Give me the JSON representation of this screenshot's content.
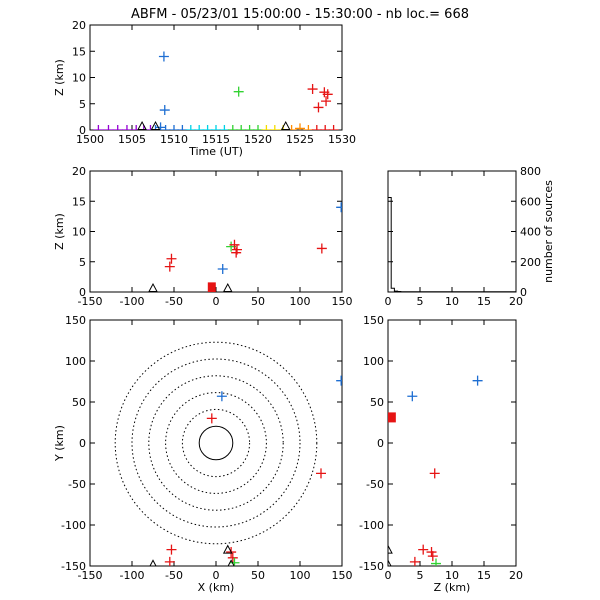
{
  "title_text": "ABFM - 05/23/01 15:00:00 - 15:30:00 - nb loc.=    668",
  "colors": {
    "early": "#9400d3",
    "blue": "#1e6ed2",
    "cyan": "#00d2e6",
    "green": "#32d232",
    "yellow": "#f5dc00",
    "orange": "#ff8c00",
    "red": "#e61414",
    "station": "#000000"
  },
  "chart_data": [
    {
      "id": "time_height",
      "type": "scatter",
      "title": "ABFM - 05/23/01 15:00:00 - 15:30:00 - nb loc.=    668",
      "xlabel": "Time (UT)",
      "ylabel": "Z (km)",
      "xlim": [
        1500,
        1530
      ],
      "ylim": [
        0,
        20
      ],
      "xticks": [
        1500,
        1505,
        1510,
        1515,
        1520,
        1525,
        1530
      ],
      "yticks": [
        0,
        5,
        10,
        15,
        20
      ],
      "sources": [
        {
          "x": 1501.0,
          "y": 0.0,
          "c": "early"
        },
        {
          "x": 1502.2,
          "y": 0.0,
          "c": "early"
        },
        {
          "x": 1503.3,
          "y": 0.0,
          "c": "early"
        },
        {
          "x": 1504.4,
          "y": 0.0,
          "c": "early"
        },
        {
          "x": 1505.5,
          "y": 0.0,
          "c": "early"
        },
        {
          "x": 1506.4,
          "y": 0.0,
          "c": "early"
        },
        {
          "x": 1507.2,
          "y": 0.0,
          "c": "early"
        },
        {
          "x": 1507.8,
          "y": 0.0,
          "c": "blue"
        },
        {
          "x": 1508.4,
          "y": 0.5,
          "c": "blue"
        },
        {
          "x": 1509.0,
          "y": 0.0,
          "c": "blue"
        },
        {
          "x": 1508.8,
          "y": 14.0,
          "c": "blue"
        },
        {
          "x": 1508.9,
          "y": 3.8,
          "c": "blue"
        },
        {
          "x": 1510.0,
          "y": 0.0,
          "c": "blue"
        },
        {
          "x": 1511.0,
          "y": 0.0,
          "c": "blue"
        },
        {
          "x": 1512.0,
          "y": 0.0,
          "c": "cyan"
        },
        {
          "x": 1513.0,
          "y": 0.0,
          "c": "cyan"
        },
        {
          "x": 1514.0,
          "y": 0.0,
          "c": "cyan"
        },
        {
          "x": 1515.0,
          "y": 0.0,
          "c": "cyan"
        },
        {
          "x": 1516.0,
          "y": 0.0,
          "c": "cyan"
        },
        {
          "x": 1517.0,
          "y": 0.0,
          "c": "green"
        },
        {
          "x": 1518.0,
          "y": 0.0,
          "c": "green"
        },
        {
          "x": 1519.0,
          "y": 0.0,
          "c": "green"
        },
        {
          "x": 1520.0,
          "y": 0.0,
          "c": "green"
        },
        {
          "x": 1517.7,
          "y": 7.3,
          "c": "green"
        },
        {
          "x": 1521.0,
          "y": 0.0,
          "c": "yellow"
        },
        {
          "x": 1522.0,
          "y": 0.0,
          "c": "yellow"
        },
        {
          "x": 1523.0,
          "y": 0.0,
          "c": "yellow"
        },
        {
          "x": 1524.0,
          "y": 0.0,
          "c": "orange"
        },
        {
          "x": 1525.0,
          "y": 0.3,
          "c": "orange"
        },
        {
          "x": 1526.0,
          "y": 0.0,
          "c": "orange"
        },
        {
          "x": 1526.5,
          "y": 7.8,
          "c": "red"
        },
        {
          "x": 1527.2,
          "y": 4.3,
          "c": "red"
        },
        {
          "x": 1527.9,
          "y": 7.2,
          "c": "red"
        },
        {
          "x": 1528.1,
          "y": 5.5,
          "c": "red"
        },
        {
          "x": 1528.3,
          "y": 6.8,
          "c": "red"
        },
        {
          "x": 1527.0,
          "y": 0.0,
          "c": "red"
        },
        {
          "x": 1528.0,
          "y": 0.0,
          "c": "red"
        },
        {
          "x": 1529.0,
          "y": 0.0,
          "c": "red"
        }
      ],
      "stations": [
        {
          "x": 1506.2
        },
        {
          "x": 1507.8
        },
        {
          "x": 1523.3
        }
      ]
    },
    {
      "id": "x_height",
      "type": "scatter",
      "xlabel": "",
      "ylabel": "Z (km)",
      "xlim": [
        -150,
        150
      ],
      "ylim": [
        0,
        20
      ],
      "xticks": [
        -150,
        -100,
        -50,
        0,
        50,
        100,
        150
      ],
      "yticks": [
        0,
        5,
        10,
        15,
        20
      ],
      "sources": [
        {
          "x": -53,
          "y": 5.5,
          "c": "red"
        },
        {
          "x": -55,
          "y": 4.2,
          "c": "red"
        },
        {
          "x": 18,
          "y": 7.5,
          "c": "green"
        },
        {
          "x": 22,
          "y": 7.8,
          "c": "red"
        },
        {
          "x": 25,
          "y": 7.0,
          "c": "red"
        },
        {
          "x": 24,
          "y": 6.5,
          "c": "red"
        },
        {
          "x": 8,
          "y": 3.8,
          "c": "blue"
        },
        {
          "x": 126,
          "y": 7.2,
          "c": "red"
        },
        {
          "x": 149,
          "y": 14.0,
          "c": "blue"
        }
      ],
      "stations": [
        {
          "x": -75
        },
        {
          "x": 14
        }
      ],
      "box": {
        "x": -5,
        "y": 0.6,
        "c": "red"
      }
    },
    {
      "id": "height_histogram",
      "type": "area",
      "xlabel": "",
      "ylabel": "number of sources",
      "xlim": [
        0,
        20
      ],
      "ylim": [
        0,
        800
      ],
      "xticks": [
        0,
        5,
        10,
        15,
        20
      ],
      "yticks": [
        0,
        200,
        400,
        600,
        800
      ],
      "bins": [
        0,
        0.5,
        1,
        1.5,
        2,
        20
      ],
      "counts": [
        625,
        25,
        6,
        3,
        2
      ]
    },
    {
      "id": "plan_view",
      "type": "scatter",
      "xlabel": "X (km)",
      "ylabel": "Y (km)",
      "xlim": [
        -150,
        150
      ],
      "ylim": [
        -150,
        150
      ],
      "xticks": [
        -150,
        -100,
        -50,
        0,
        50,
        100,
        150
      ],
      "yticks": [
        -150,
        -100,
        -50,
        0,
        50,
        100,
        150
      ],
      "range_rings_km": [
        20,
        40,
        60,
        80,
        100,
        120
      ],
      "sources": [
        {
          "x": 7,
          "y": 57,
          "c": "blue"
        },
        {
          "x": -5,
          "y": 30,
          "c": "red"
        },
        {
          "x": 125,
          "y": -37,
          "c": "red"
        },
        {
          "x": 149,
          "y": 76,
          "c": "blue"
        },
        {
          "x": -53,
          "y": -130,
          "c": "red"
        },
        {
          "x": -55,
          "y": -145,
          "c": "red"
        },
        {
          "x": 18,
          "y": -133,
          "c": "red"
        },
        {
          "x": 20,
          "y": -140,
          "c": "red"
        },
        {
          "x": 22,
          "y": -146,
          "c": "green"
        }
      ],
      "stations": [
        {
          "x": -75,
          "y": -148
        },
        {
          "x": 14,
          "y": -130
        },
        {
          "x": 18,
          "y": -148
        }
      ]
    },
    {
      "id": "height_y",
      "type": "scatter",
      "xlabel": "Z (km)",
      "ylabel": "",
      "xlim": [
        0,
        20
      ],
      "ylim": [
        -150,
        150
      ],
      "xticks": [
        0,
        5,
        10,
        15,
        20
      ],
      "yticks": [
        -150,
        -100,
        -50,
        0,
        50,
        100,
        150
      ],
      "sources": [
        {
          "x": 14.0,
          "y": 76,
          "c": "blue"
        },
        {
          "x": 3.8,
          "y": 57,
          "c": "blue"
        },
        {
          "x": 7.3,
          "y": -37,
          "c": "red"
        },
        {
          "x": 5.5,
          "y": -130,
          "c": "red"
        },
        {
          "x": 6.8,
          "y": -133,
          "c": "red"
        },
        {
          "x": 4.2,
          "y": -145,
          "c": "red"
        },
        {
          "x": 7.0,
          "y": -138,
          "c": "red"
        },
        {
          "x": 7.5,
          "y": -147,
          "c": "green"
        }
      ],
      "stations": [
        {
          "x": 0,
          "y": -130
        },
        {
          "x": 0,
          "y": -148
        }
      ],
      "box": {
        "x": 0.6,
        "y": 30,
        "c": "red"
      }
    }
  ]
}
